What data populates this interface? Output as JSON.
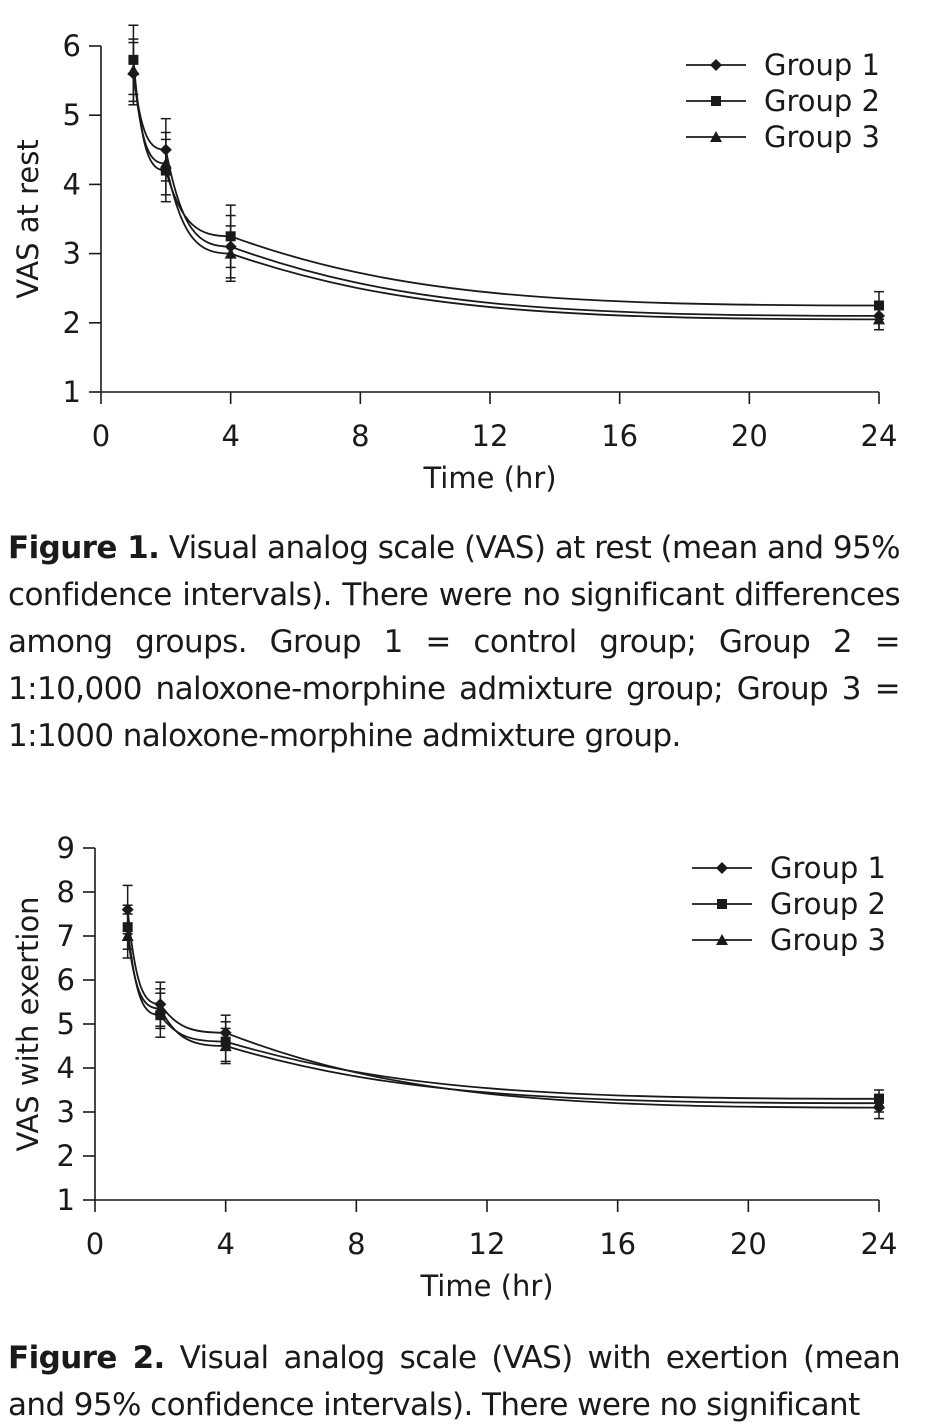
{
  "chart_data": [
    {
      "type": "line",
      "title": "",
      "xlabel": "Time (hr)",
      "ylabel": "VAS at rest",
      "xlim": [
        0,
        24
      ],
      "ylim": [
        1,
        6
      ],
      "xticks": [
        0,
        4,
        8,
        12,
        16,
        20,
        24
      ],
      "yticks": [
        1,
        2,
        3,
        4,
        5,
        6
      ],
      "x": [
        1,
        2,
        4,
        24
      ],
      "legend_position": "top-right",
      "series": [
        {
          "name": "Group 1",
          "marker": "diamond",
          "values": [
            5.6,
            4.5,
            3.1,
            2.1
          ],
          "ci": [
            0.45,
            0.45,
            0.45,
            0.2
          ]
        },
        {
          "name": "Group 2",
          "marker": "square",
          "values": [
            5.8,
            4.2,
            3.25,
            2.25
          ],
          "ci": [
            0.5,
            0.45,
            0.45,
            0.2
          ]
        },
        {
          "name": "Group 3",
          "marker": "triangle",
          "values": [
            5.65,
            4.3,
            3.0,
            2.05
          ],
          "ci": [
            0.45,
            0.45,
            0.4,
            0.15
          ]
        }
      ]
    },
    {
      "type": "line",
      "title": "",
      "xlabel": "Time (hr)",
      "ylabel": "VAS with exertion",
      "xlim": [
        0,
        24
      ],
      "ylim": [
        1,
        9
      ],
      "xticks": [
        0,
        4,
        8,
        12,
        16,
        20,
        24
      ],
      "yticks": [
        1,
        2,
        3,
        4,
        5,
        6,
        7,
        8,
        9
      ],
      "x": [
        1,
        2,
        4,
        24
      ],
      "legend_position": "top-right",
      "series": [
        {
          "name": "Group 1",
          "marker": "diamond",
          "values": [
            7.6,
            5.45,
            4.8,
            3.1
          ],
          "ci": [
            0.55,
            0.5,
            0.4,
            0.25
          ]
        },
        {
          "name": "Group 2",
          "marker": "square",
          "values": [
            7.2,
            5.2,
            4.6,
            3.3
          ],
          "ci": [
            0.5,
            0.5,
            0.45,
            0.2
          ]
        },
        {
          "name": "Group 3",
          "marker": "triangle",
          "values": [
            7.0,
            5.35,
            4.5,
            3.2
          ],
          "ci": [
            0.5,
            0.45,
            0.4,
            0.2
          ]
        }
      ]
    }
  ],
  "captions": [
    {
      "label": "Figure 1.",
      "text": " Visual analog scale (VAS) at rest (mean and 95% confidence intervals). There were no significant differences among groups. Group 1 = control group; Group 2 = 1:10,000 naloxone-morphine admixture group; Group 3 = 1:1000 naloxone-morphine admixture group."
    },
    {
      "label": "Figure 2.",
      "text": " Visual analog scale (VAS) with exertion (mean and 95% confidence intervals). There were no significant"
    }
  ]
}
